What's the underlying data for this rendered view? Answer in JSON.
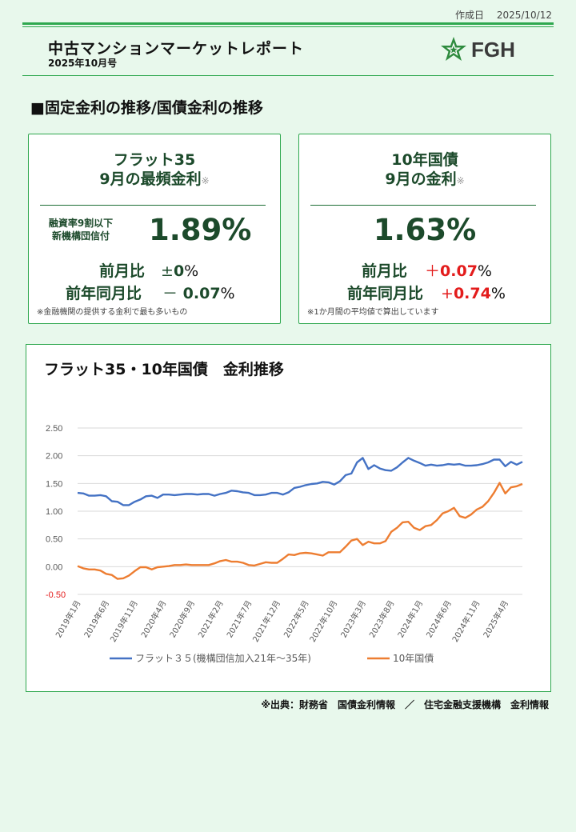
{
  "header": {
    "created_label": "作成日",
    "created_date": "2025/10/12",
    "title": "中古マンションマーケットレポート",
    "issue": "2025年10月号",
    "logo_text": "FGH"
  },
  "section_title": "■固定金利の推移/国債金利の推移",
  "cards": {
    "flat35": {
      "title_line1": "フラット35",
      "title_line2": "9月の最頻金利",
      "note_mark": "※",
      "sub_label_line1": "融資率9割以下",
      "sub_label_line2": "新機構団信付",
      "rate": "1.89%",
      "mom_label": "前月比",
      "mom_sign": "±",
      "mom_value": "0",
      "mom_unit": "%",
      "yoy_label": "前年同月比",
      "yoy_sign": "－",
      "yoy_value": "0.07",
      "yoy_unit": "%",
      "note": "※金融機関の提供する金利で最も多いもの"
    },
    "jgb10": {
      "title_line1": "10年国債",
      "title_line2": "9月の金利",
      "note_mark": "※",
      "rate": "1.63%",
      "mom_label": "前月比",
      "mom_sign": "＋",
      "mom_value": "0.07",
      "mom_unit": "%",
      "yoy_label": "前年同月比",
      "yoy_sign": "+",
      "yoy_value": "0.74",
      "yoy_unit": "%",
      "note": "※1か月間の平均値で算出しています",
      "positive_color": "#e31c1c"
    }
  },
  "chart_data": {
    "type": "line",
    "title": "フラット35・10年国債　金利推移",
    "ylim": [
      -0.5,
      2.5
    ],
    "y_ticks": [
      "2.50",
      "2.00",
      "1.50",
      "1.00",
      "0.50",
      "0.00",
      "-0.50"
    ],
    "x_tick_labels": [
      "2019年1月",
      "2019年6月",
      "2019年11月",
      "2020年4月",
      "2020年9月",
      "2021年2月",
      "2021年7月",
      "2021年12月",
      "2022年5月",
      "2022年10月",
      "2023年3月",
      "2023年8月",
      "2024年1月",
      "2024年6月",
      "2024年11月",
      "2025年4月"
    ],
    "grid": true,
    "legend_position": "bottom",
    "series": [
      {
        "name": "フラット３５(機構団信加入21年～35年)",
        "color": "#4472c4",
        "values": [
          1.33,
          1.32,
          1.28,
          1.28,
          1.29,
          1.27,
          1.18,
          1.17,
          1.11,
          1.11,
          1.17,
          1.21,
          1.27,
          1.28,
          1.24,
          1.3,
          1.3,
          1.29,
          1.3,
          1.31,
          1.31,
          1.3,
          1.31,
          1.31,
          1.28,
          1.31,
          1.33,
          1.37,
          1.36,
          1.34,
          1.33,
          1.29,
          1.29,
          1.3,
          1.33,
          1.33,
          1.3,
          1.34,
          1.42,
          1.44,
          1.47,
          1.49,
          1.5,
          1.53,
          1.52,
          1.48,
          1.54,
          1.65,
          1.68,
          1.88,
          1.96,
          1.76,
          1.83,
          1.77,
          1.74,
          1.73,
          1.79,
          1.88,
          1.96,
          1.91,
          1.87,
          1.82,
          1.84,
          1.82,
          1.83,
          1.85,
          1.84,
          1.85,
          1.82,
          1.82,
          1.83,
          1.85,
          1.88,
          1.93,
          1.93,
          1.81,
          1.89,
          1.84,
          1.89
        ]
      },
      {
        "name": "10年国債",
        "color": "#ed7d31",
        "values": [
          0.01,
          -0.03,
          -0.05,
          -0.05,
          -0.07,
          -0.13,
          -0.15,
          -0.22,
          -0.21,
          -0.16,
          -0.08,
          -0.01,
          -0.01,
          -0.05,
          -0.01,
          0.0,
          0.01,
          0.03,
          0.03,
          0.04,
          0.03,
          0.03,
          0.03,
          0.03,
          0.06,
          0.1,
          0.12,
          0.09,
          0.09,
          0.07,
          0.03,
          0.02,
          0.05,
          0.08,
          0.07,
          0.07,
          0.14,
          0.22,
          0.21,
          0.24,
          0.25,
          0.24,
          0.22,
          0.2,
          0.26,
          0.26,
          0.26,
          0.36,
          0.47,
          0.5,
          0.39,
          0.45,
          0.42,
          0.42,
          0.46,
          0.63,
          0.7,
          0.8,
          0.81,
          0.7,
          0.66,
          0.73,
          0.75,
          0.84,
          0.96,
          1.0,
          1.06,
          0.91,
          0.88,
          0.94,
          1.03,
          1.08,
          1.18,
          1.33,
          1.51,
          1.32,
          1.43,
          1.45,
          1.49
        ]
      }
    ]
  },
  "source": "※出典：財務省　国債金利情報　／　住宅金融支援機構　金利情報"
}
